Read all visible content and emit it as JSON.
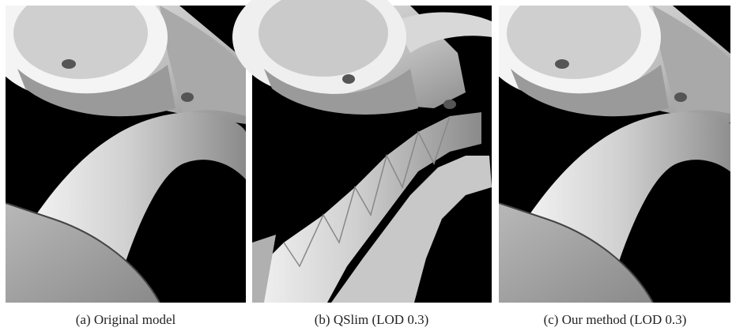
{
  "figure": {
    "panels": [
      {
        "caption": "(a) Original model"
      },
      {
        "caption": "(b) QSlim (LOD 0.3)"
      },
      {
        "caption": "(c) Our method (LOD 0.3)"
      }
    ]
  }
}
